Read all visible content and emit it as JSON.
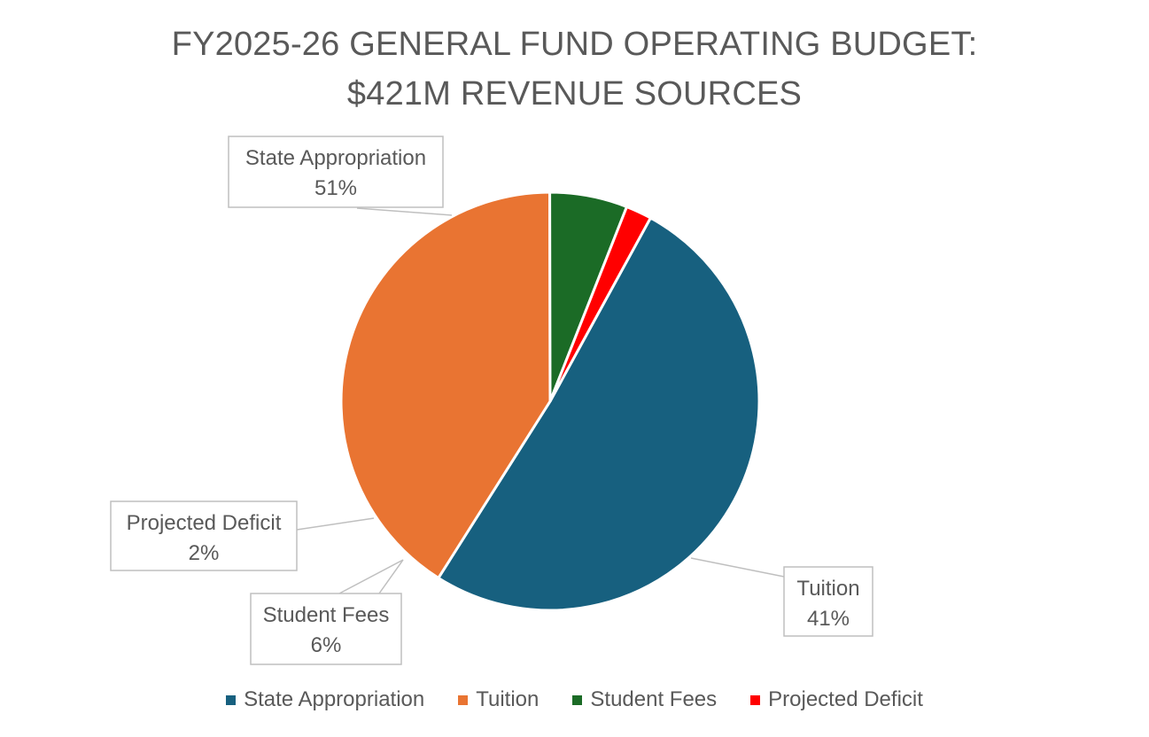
{
  "chart_data": {
    "type": "pie",
    "title_lines": [
      "FY2025-26 GENERAL FUND OPERATING BUDGET:",
      "$421M REVENUE SOURCES"
    ],
    "slices": [
      {
        "name": "State Appropriation",
        "value": 51,
        "label": "51%",
        "color": "#17607F"
      },
      {
        "name": "Tuition",
        "value": 41,
        "label": "41%",
        "color": "#E97432"
      },
      {
        "name": "Student Fees",
        "value": 6,
        "label": "6%",
        "color": "#1B6B26"
      },
      {
        "name": "Projected Deficit",
        "value": 2,
        "label": "2%",
        "color": "#FF0000"
      }
    ],
    "legend_position": "bottom",
    "data_labels": "callouts"
  }
}
